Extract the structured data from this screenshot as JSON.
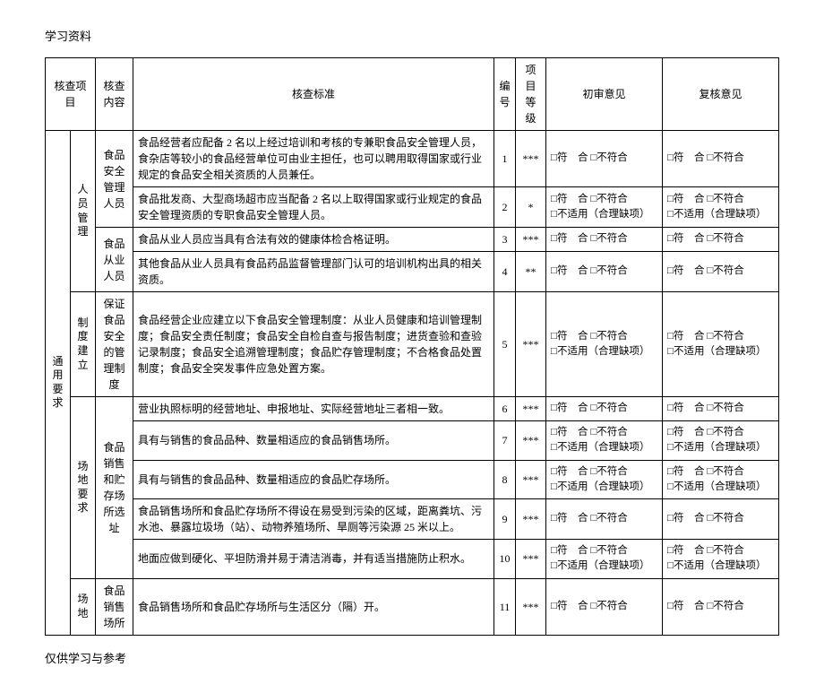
{
  "header": "学习资料",
  "footer": "仅供学习与参考",
  "watermark": "",
  "columns": {
    "project": "核查项目",
    "content": "核查内容",
    "standard": "核查标准",
    "num": "编号",
    "grade": "项目等级",
    "review": "初审意见",
    "recheck": "复核意见"
  },
  "checkbox_labels": {
    "pass": "□符　合",
    "pass_gap": "□符　合 □不符合",
    "fail": "□不符合",
    "na": "□不适用（合理缺项）"
  },
  "groups": {
    "general": {
      "label": "通用要求",
      "rowspan": 11
    },
    "personnel": {
      "label": "人员管理",
      "rowspan": 4
    },
    "system": {
      "label": "制度建立",
      "rowspan": 1
    },
    "site_req": {
      "label": "场地要求",
      "rowspan": 5
    },
    "site": {
      "label": "场地",
      "rowspan": 1
    },
    "safety_mgr": {
      "label": "食品安全管理人员",
      "rowspan": 2
    },
    "food_staff": {
      "label": "食品从业人员",
      "rowspan": 2
    },
    "safety_system": {
      "label": "保证食品安全的管理制度",
      "rowspan": 1
    },
    "sale_storage": {
      "label": "食品销售和贮存场所选址",
      "rowspan": 4
    },
    "sale_site": {
      "label": "食品销售场所",
      "rowspan": 1
    }
  },
  "rows": [
    {
      "num": "1",
      "standard": "食品经营者应配备 2 名以上经过培训和考核的专兼职食品安全管理人员，食杂店等较小的食品经营单位可由业主担任，也可以聘用取得国家或行业规定的食品安全相关资质的人员兼任。",
      "grade": "***",
      "review_type": "single",
      "recheck_type": "single"
    },
    {
      "num": "2",
      "standard": "食品批发商、大型商场超市应当配备 2 名以上取得国家或行业规定的食品安全管理资质的专职食品安全管理人员。",
      "grade": "*",
      "review_type": "double",
      "recheck_type": "double"
    },
    {
      "num": "3",
      "standard": "食品从业人员应当具有合法有效的健康体检合格证明。",
      "grade": "***",
      "review_type": "single",
      "recheck_type": "single"
    },
    {
      "num": "4",
      "standard": "其他食品从业人员具有食品药品监督管理部门认可的培训机构出具的相关资质。",
      "grade": "**",
      "review_type": "single",
      "recheck_type": "single"
    },
    {
      "num": "5",
      "standard": "食品经营企业应建立以下食品安全管理制度：从业人员健康和培训管理制度；食品安全责任制度；食品安全自检自查与报告制度；进货查验和查验记录制度；食品安全追溯管理制度；食品贮存管理制度；不合格食品处置制度；食品安全突发事件应急处置方案。",
      "grade": "***",
      "review_type": "double",
      "recheck_type": "double"
    },
    {
      "num": "6",
      "standard": "营业执照标明的经营地址、申报地址、实际经营地址三者相一致。",
      "grade": "***",
      "review_type": "single",
      "recheck_type": "single"
    },
    {
      "num": "7",
      "standard": "具有与销售的食品品种、数量相适应的食品销售场所。",
      "grade": "***",
      "review_type": "double",
      "recheck_type": "double"
    },
    {
      "num": "8",
      "standard": "具有与销售的食品品种、数量相适应的食品贮存场所。",
      "grade": "***",
      "review_type": "double",
      "recheck_type": "double"
    },
    {
      "num": "9",
      "standard": "食品销售场所和食品贮存场所不得设在易受到污染的区域，距离粪坑、污水池、暴露垃圾场（站）、动物养殖场所、旱厕等污染源 25 米以上。",
      "grade": "***",
      "review_type": "single",
      "recheck_type": "single"
    },
    {
      "num": "10",
      "standard": "地面应做到硬化、平坦防滑并易于清洁消毒，并有适当措施防止积水。",
      "grade": "***",
      "review_type": "double",
      "recheck_type": "double"
    },
    {
      "num": "11",
      "standard": "食品销售场所和食品贮存场所与生活区分（隔）开。",
      "grade": "***",
      "review_type": "single",
      "recheck_type": "single"
    }
  ]
}
